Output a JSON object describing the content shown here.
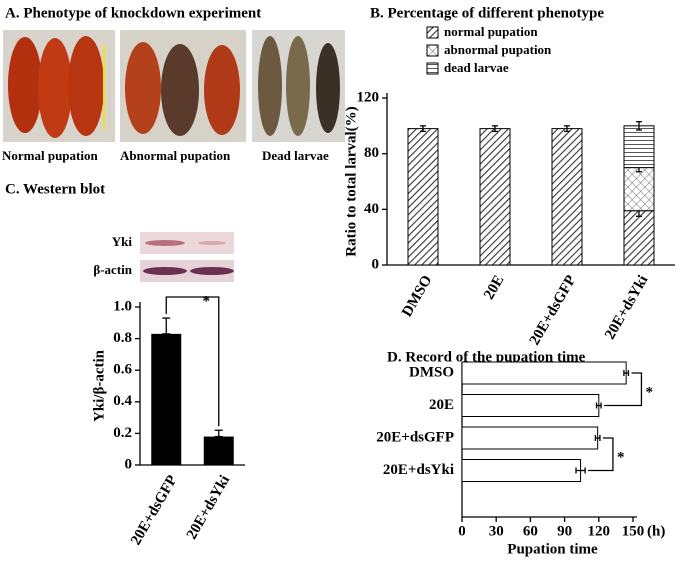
{
  "panel_a": {
    "title": "A. Phenotype of knockdown experiment",
    "captions": [
      "Normal pupation",
      "Abnormal pupation",
      "Dead larvae"
    ]
  },
  "chart_data": [
    {
      "type": "stacked_bar",
      "title": "B. Percentage of different phenotype",
      "ylabel": "Ratio  to total larval(%)",
      "categories": [
        "DMSO",
        "20E",
        "20E+dsGFP",
        "20E+dsYki"
      ],
      "series": [
        {
          "name": "normal pupation",
          "pattern": "diagonal",
          "values": [
            98,
            98,
            98,
            39
          ],
          "errors": [
            2,
            2,
            2,
            4
          ]
        },
        {
          "name": "abnormal pupation",
          "pattern": "cross",
          "values": [
            0,
            0,
            0,
            31
          ],
          "errors": [
            null,
            null,
            null,
            3
          ]
        },
        {
          "name": "dead larvae",
          "pattern": "horizontal",
          "values": [
            0,
            0,
            0,
            30
          ],
          "errors": [
            null,
            null,
            null,
            3
          ]
        }
      ],
      "ylim": [
        0,
        120
      ],
      "yticks": [
        0,
        40,
        80,
        120
      ]
    },
    {
      "type": "bar",
      "title": "C. Western blot",
      "blot_labels": [
        "Yki",
        "β-actin"
      ],
      "ylabel": "Yki/β-actin",
      "categories": [
        "20E+dsGFP",
        "20E+dsYki"
      ],
      "values": [
        0.83,
        0.18
      ],
      "errors": [
        0.1,
        0.04
      ],
      "color": "#000000",
      "annotations": [
        "*"
      ],
      "ylim": [
        0,
        1
      ],
      "yticks": [
        0,
        0.2,
        0.4,
        0.6,
        0.8,
        {
          "value": 1,
          "label": "1.0"
        }
      ]
    },
    {
      "type": "hbar",
      "title": "D. Record of  the pupation time",
      "xlabel": "Pupation time",
      "x_unit": "(h)",
      "categories": [
        "DMSO",
        "20E",
        "20E+dsGFP",
        "20E+dsYki"
      ],
      "values": [
        144,
        120,
        119,
        104
      ],
      "errors": [
        2,
        2,
        2,
        4
      ],
      "color": "#ffffff",
      "annotations": [
        "*",
        "*"
      ],
      "xlim": [
        0,
        150
      ],
      "xticks": [
        0,
        30,
        60,
        90,
        120,
        150
      ]
    }
  ]
}
